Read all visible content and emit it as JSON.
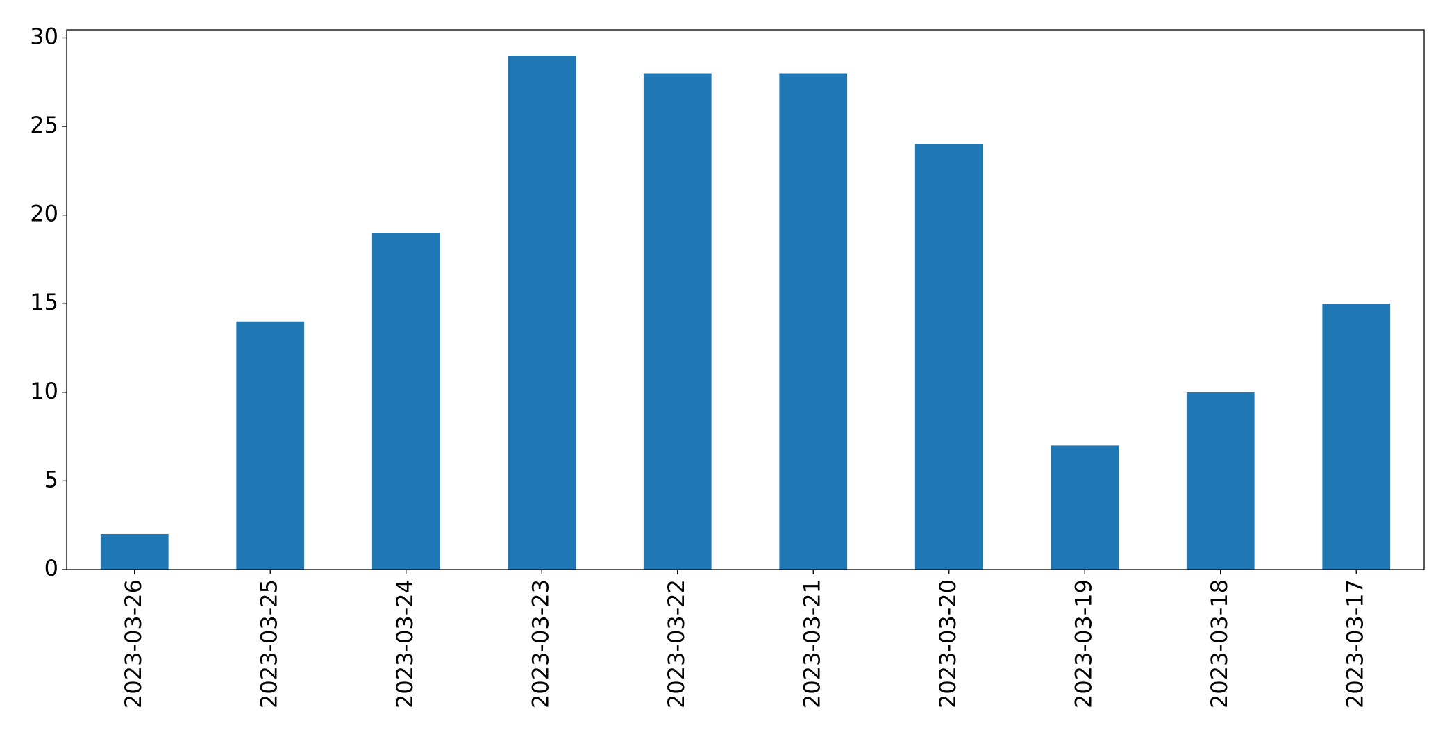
{
  "chart_data": {
    "type": "bar",
    "categories": [
      "2023-03-26",
      "2023-03-25",
      "2023-03-24",
      "2023-03-23",
      "2023-03-22",
      "2023-03-21",
      "2023-03-20",
      "2023-03-19",
      "2023-03-18",
      "2023-03-17"
    ],
    "values": [
      2,
      14,
      19,
      29,
      28,
      28,
      24,
      7,
      10,
      15
    ],
    "color": "#1f77b4",
    "ylim": [
      0,
      30.45
    ],
    "yticks": [
      0,
      5,
      10,
      15,
      20,
      25,
      30
    ],
    "grid": false
  }
}
